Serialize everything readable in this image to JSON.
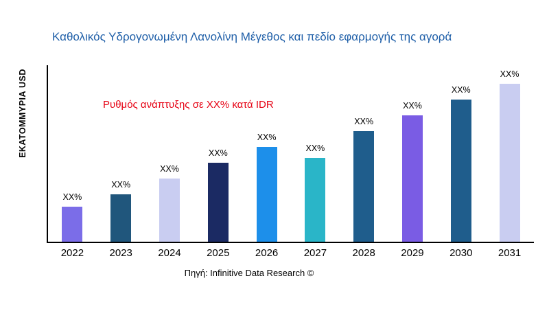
{
  "chart_data": {
    "type": "bar",
    "title": "Καθολικός Υδρογονωμένη Λανολίνη Μέγεθος και πεδίο εφαρμογής της αγορά",
    "ylabel": "ΕΚΑΤΟΜΜΥΡΙΑ USD",
    "annotation": "Ρυθμός ανάπτυξης σε XX% κατά IDR",
    "source": "Πηγή: Infinitive Data Research ©",
    "categories": [
      "2022",
      "2023",
      "2024",
      "2025",
      "2026",
      "2027",
      "2028",
      "2029",
      "2030",
      "2031"
    ],
    "values": [
      22,
      30,
      40,
      50,
      60,
      53,
      70,
      80,
      90,
      100
    ],
    "value_labels": [
      "XX%",
      "XX%",
      "XX%",
      "XX%",
      "XX%",
      "XX%",
      "XX%",
      "XX%",
      "XX%",
      "XX%"
    ],
    "bar_colors": [
      "#7b6de8",
      "#20567c",
      "#c9cdf1",
      "#1b2a63",
      "#1d8fea",
      "#2ab5c8",
      "#1f5d8c",
      "#7a5ce4",
      "#1f5d8c",
      "#c9cdf1"
    ],
    "title_color": "#1f5fa8",
    "annotation_color": "#e60012",
    "axis_color": "#000000",
    "ylim": [
      0,
      100
    ],
    "grid": false,
    "legend": "none"
  }
}
